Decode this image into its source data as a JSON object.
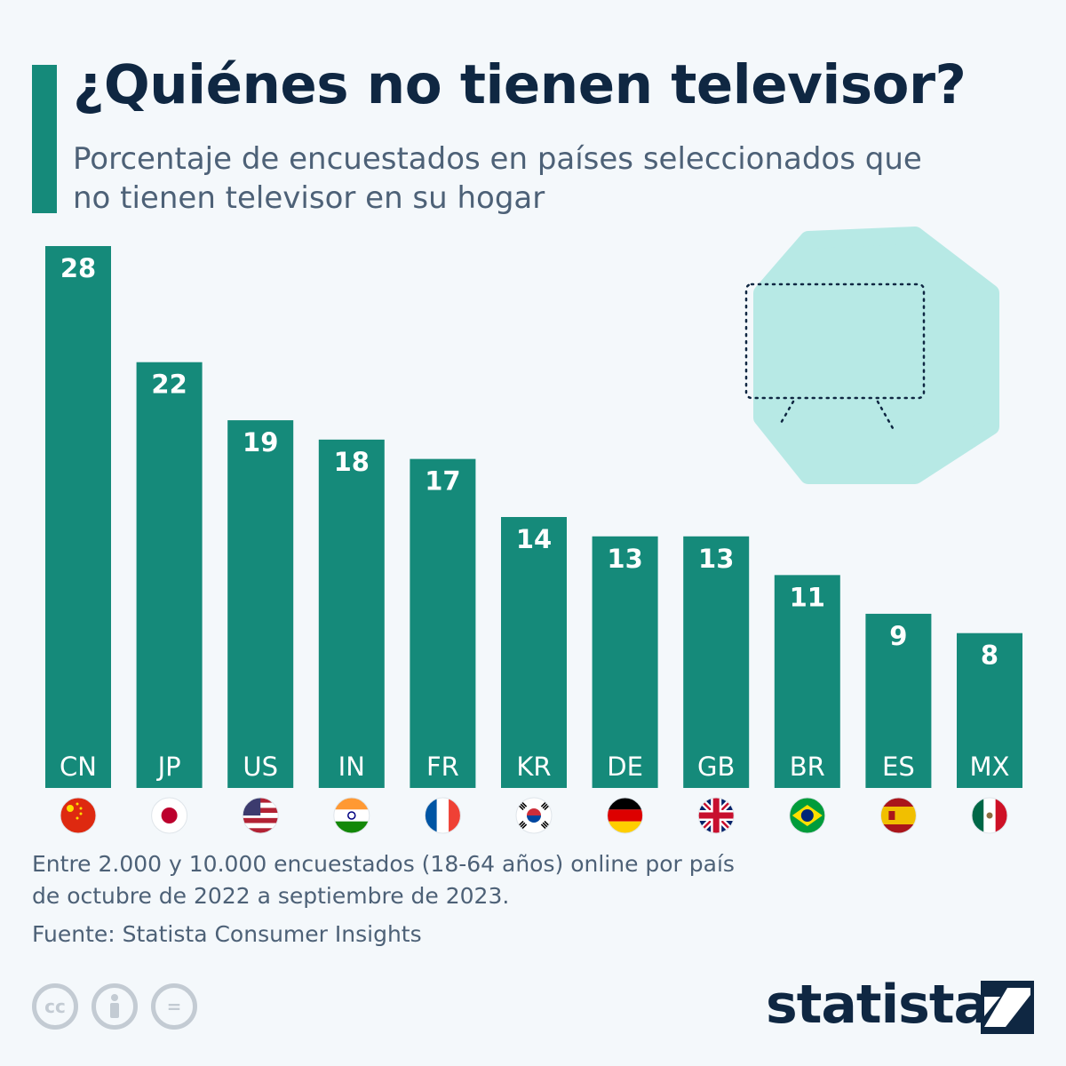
{
  "header": {
    "title": "¿Quiénes no tienen televisor?",
    "subtitle": "Porcentaje de encuestados en países seleccionados que no tienen televisor en su hogar"
  },
  "colors": {
    "accent": "#158a7a",
    "title": "#0f2742",
    "text": "#4d6177",
    "decoration": "#b7e9e5",
    "background": "#f4f8fb"
  },
  "chart_data": {
    "type": "bar",
    "title": "¿Quiénes no tienen televisor?",
    "subtitle": "Porcentaje de encuestados en países seleccionados que no tienen televisor en su hogar",
    "categories": [
      "CN",
      "JP",
      "US",
      "IN",
      "FR",
      "KR",
      "DE",
      "GB",
      "BR",
      "ES",
      "MX"
    ],
    "values": [
      28,
      22,
      19,
      18,
      17,
      14,
      13,
      13,
      11,
      9,
      8
    ],
    "xlabel": "",
    "ylabel": "",
    "ylim": [
      0,
      28
    ],
    "grid": false,
    "data_labels": true,
    "flags": [
      "flag-cn",
      "flag-jp",
      "flag-us",
      "flag-in",
      "flag-fr",
      "flag-kr",
      "flag-de",
      "flag-gb",
      "flag-br",
      "flag-es",
      "flag-mx"
    ]
  },
  "footer": {
    "note": "Entre 2.000 y 10.000 encuestados (18-64 años) online por país de octubre de 2022 a septiembre de 2023.",
    "source": "Fuente: Statista Consumer Insights",
    "license_icons": [
      "cc-icon",
      "attribution-icon",
      "no-derivatives-icon"
    ],
    "license_cc_text": "cc",
    "license_nd_text": "=",
    "brand": "statista"
  }
}
